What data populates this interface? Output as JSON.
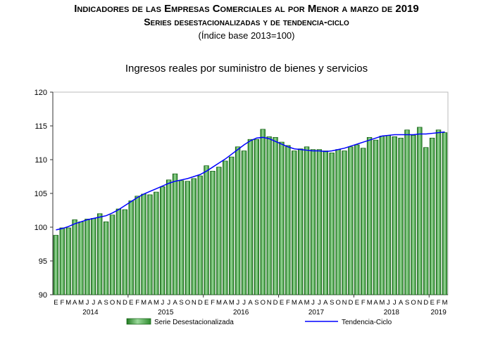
{
  "header": {
    "title": "Indicadores de las Empresas Comerciales al por Menor a marzo de 2019",
    "subtitle": "Series desestacionalizadas y de tendencia-ciclo",
    "base": "(Índice base 2013=100)"
  },
  "chart_data": {
    "type": "bar",
    "title": "Ingresos reales por suministro de bienes y servicios",
    "xlabel": "",
    "ylabel": "",
    "ylim": [
      90,
      120
    ],
    "yticks": [
      "90",
      "95",
      "100",
      "105",
      "110",
      "115",
      "120"
    ],
    "month_labels": [
      "E",
      "F",
      "M",
      "A",
      "M",
      "J",
      "J",
      "A",
      "S",
      "O",
      "N",
      "D"
    ],
    "years": [
      "2014",
      "2015",
      "2016",
      "2017",
      "2018",
      "2019"
    ],
    "legend_position": "bottom",
    "series": [
      {
        "name": "Serie Desestacionalizada",
        "type": "bar",
        "color": "#3a9c3a",
        "values": [
          98.8,
          99.9,
          99.9,
          101.1,
          100.8,
          101.2,
          101.3,
          102.0,
          100.8,
          101.8,
          102.7,
          102.6,
          103.9,
          104.6,
          104.9,
          104.8,
          105.2,
          106.0,
          107.0,
          107.9,
          106.9,
          106.8,
          107.2,
          107.6,
          109.1,
          108.3,
          108.9,
          109.8,
          110.4,
          111.9,
          111.3,
          113.0,
          113.0,
          114.5,
          113.4,
          113.3,
          112.6,
          112.1,
          111.3,
          111.6,
          111.9,
          111.5,
          111.5,
          111.3,
          111.0,
          111.5,
          111.3,
          111.9,
          112.2,
          111.7,
          113.3,
          112.9,
          113.5,
          113.6,
          113.4,
          113.2,
          114.4,
          113.6,
          114.8,
          111.8,
          113.2,
          114.4,
          114.0
        ]
      },
      {
        "name": "Tendencia-Ciclo",
        "type": "line",
        "color": "#0000ff",
        "values": [
          99.6,
          99.8,
          100.1,
          100.5,
          100.8,
          101.1,
          101.3,
          101.5,
          101.7,
          102.1,
          102.6,
          103.2,
          103.8,
          104.4,
          104.9,
          105.3,
          105.7,
          106.1,
          106.5,
          106.8,
          107.0,
          107.2,
          107.5,
          107.8,
          108.3,
          108.9,
          109.5,
          110.1,
          110.8,
          111.5,
          112.2,
          112.8,
          113.2,
          113.3,
          113.1,
          112.7,
          112.3,
          111.9,
          111.6,
          111.5,
          111.4,
          111.3,
          111.3,
          111.2,
          111.3,
          111.5,
          111.7,
          112.0,
          112.3,
          112.6,
          112.9,
          113.2,
          113.5,
          113.6,
          113.7,
          113.7,
          113.7,
          113.7,
          113.8,
          113.8,
          113.9,
          114.0,
          114.1
        ]
      }
    ]
  }
}
